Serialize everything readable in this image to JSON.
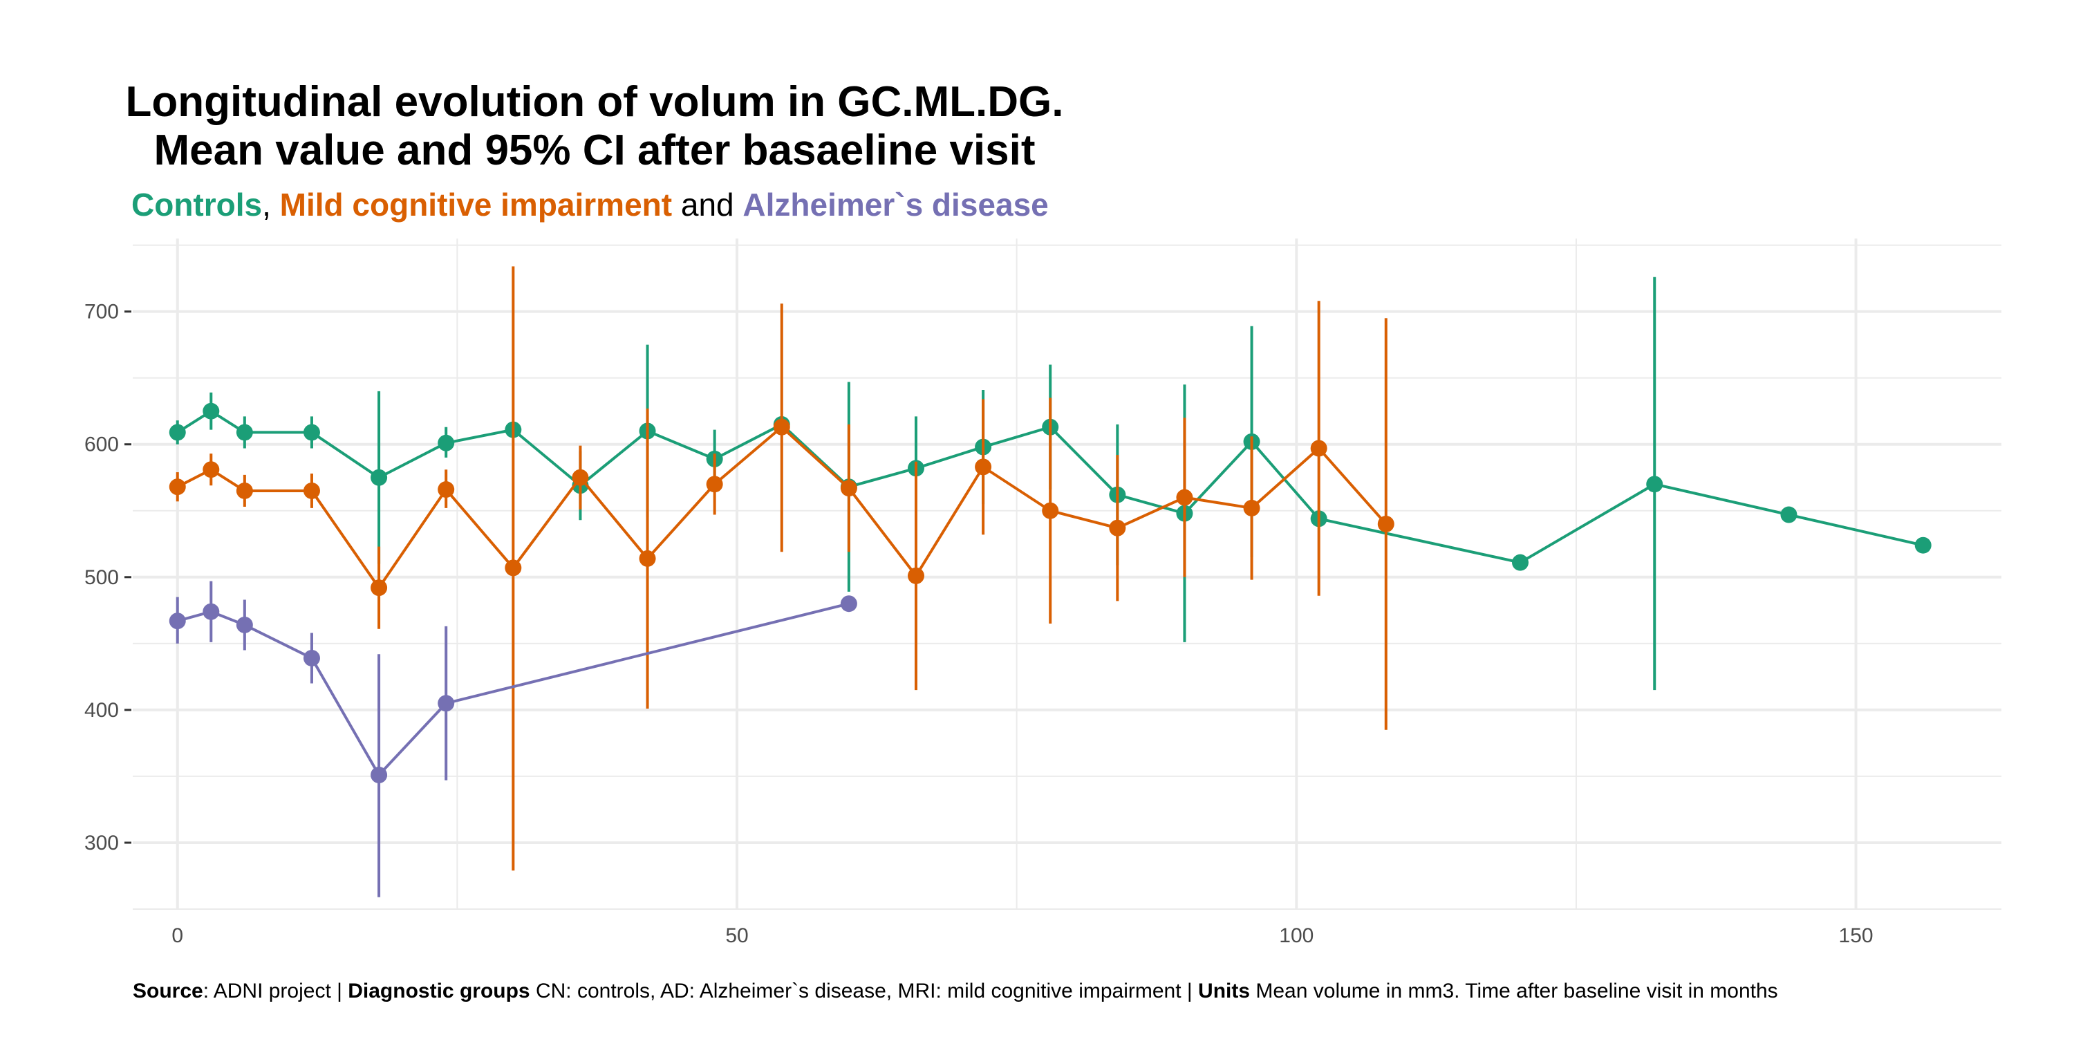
{
  "chart_data": {
    "type": "line",
    "title_lines": [
      "Longitudinal evolution of volum in GC.ML.DG.",
      "Mean value and 95% CI after basaeline visit"
    ],
    "subtitle": {
      "controls": "Controls",
      "sep1": ", ",
      "mci": "Mild cognitive impairment",
      "and": " and ",
      "ad": "Alzheimer`s disease"
    },
    "xlim": [
      -4,
      163
    ],
    "ylim": [
      250,
      755
    ],
    "x_ticks": [
      0,
      50,
      100,
      150
    ],
    "x_tick_labels": [
      "0",
      "50",
      "100",
      "150"
    ],
    "y_ticks": [
      300,
      400,
      500,
      600,
      700
    ],
    "y_tick_labels": [
      "300",
      "400",
      "500",
      "600",
      "700"
    ],
    "grid": true,
    "legend": "none",
    "colors": {
      "controls": "#1b9e77",
      "mci": "#d95f02",
      "ad": "#7570b3",
      "grid": "#ebebeb"
    },
    "series": [
      {
        "key": "controls",
        "points": [
          {
            "x": 0,
            "y": 609,
            "lo": 600,
            "hi": 618
          },
          {
            "x": 3,
            "y": 625,
            "lo": 611,
            "hi": 639
          },
          {
            "x": 6,
            "y": 609,
            "lo": 597,
            "hi": 621
          },
          {
            "x": 12,
            "y": 609,
            "lo": 597,
            "hi": 621
          },
          {
            "x": 18,
            "y": 575,
            "lo": 510,
            "hi": 640
          },
          {
            "x": 24,
            "y": 601,
            "lo": 590,
            "hi": 613
          },
          {
            "x": 30,
            "y": 611,
            "lo": null,
            "hi": null
          },
          {
            "x": 36,
            "y": 569,
            "lo": 543,
            "hi": 595
          },
          {
            "x": 42,
            "y": 610,
            "lo": 545,
            "hi": 675
          },
          {
            "x": 48,
            "y": 589,
            "lo": 567,
            "hi": 611
          },
          {
            "x": 54,
            "y": 615,
            "lo": null,
            "hi": null
          },
          {
            "x": 60,
            "y": 568,
            "lo": 489,
            "hi": 647
          },
          {
            "x": 66,
            "y": 582,
            "lo": 543,
            "hi": 621
          },
          {
            "x": 72,
            "y": 598,
            "lo": 555,
            "hi": 641
          },
          {
            "x": 78,
            "y": 613,
            "lo": 566,
            "hi": 660
          },
          {
            "x": 84,
            "y": 562,
            "lo": 509,
            "hi": 615
          },
          {
            "x": 90,
            "y": 548,
            "lo": 451,
            "hi": 645
          },
          {
            "x": 96,
            "y": 602,
            "lo": 515,
            "hi": 689
          },
          {
            "x": 102,
            "y": 544,
            "lo": null,
            "hi": null
          },
          {
            "x": 120,
            "y": 511,
            "lo": null,
            "hi": null
          },
          {
            "x": 132,
            "y": 570,
            "lo": 415,
            "hi": 726
          },
          {
            "x": 144,
            "y": 547,
            "lo": null,
            "hi": null
          },
          {
            "x": 156,
            "y": 524,
            "lo": null,
            "hi": null
          }
        ]
      },
      {
        "key": "mci",
        "points": [
          {
            "x": 0,
            "y": 568,
            "lo": 557,
            "hi": 579
          },
          {
            "x": 3,
            "y": 581,
            "lo": 569,
            "hi": 593
          },
          {
            "x": 6,
            "y": 565,
            "lo": 553,
            "hi": 577
          },
          {
            "x": 12,
            "y": 565,
            "lo": 552,
            "hi": 578
          },
          {
            "x": 18,
            "y": 492,
            "lo": 461,
            "hi": 523
          },
          {
            "x": 24,
            "y": 566,
            "lo": 552,
            "hi": 581
          },
          {
            "x": 30,
            "y": 507,
            "lo": 279,
            "hi": 734
          },
          {
            "x": 36,
            "y": 575,
            "lo": 551,
            "hi": 599
          },
          {
            "x": 42,
            "y": 514,
            "lo": 401,
            "hi": 627
          },
          {
            "x": 48,
            "y": 570,
            "lo": 547,
            "hi": 593
          },
          {
            "x": 54,
            "y": 613,
            "lo": 519,
            "hi": 706
          },
          {
            "x": 60,
            "y": 567,
            "lo": 519,
            "hi": 615
          },
          {
            "x": 66,
            "y": 501,
            "lo": 415,
            "hi": 587
          },
          {
            "x": 72,
            "y": 583,
            "lo": 532,
            "hi": 634
          },
          {
            "x": 78,
            "y": 550,
            "lo": 465,
            "hi": 635
          },
          {
            "x": 84,
            "y": 537,
            "lo": 482,
            "hi": 592
          },
          {
            "x": 90,
            "y": 560,
            "lo": 500,
            "hi": 620
          },
          {
            "x": 96,
            "y": 552,
            "lo": 498,
            "hi": 606
          },
          {
            "x": 102,
            "y": 597,
            "lo": 486,
            "hi": 708
          },
          {
            "x": 108,
            "y": 540,
            "lo": 385,
            "hi": 695
          }
        ]
      },
      {
        "key": "ad",
        "points": [
          {
            "x": 0,
            "y": 467,
            "lo": 450,
            "hi": 485
          },
          {
            "x": 3,
            "y": 474,
            "lo": 451,
            "hi": 497
          },
          {
            "x": 6,
            "y": 464,
            "lo": 445,
            "hi": 483
          },
          {
            "x": 12,
            "y": 439,
            "lo": 420,
            "hi": 458
          },
          {
            "x": 18,
            "y": 351,
            "lo": 259,
            "hi": 442
          },
          {
            "x": 24,
            "y": 405,
            "lo": 347,
            "hi": 463
          },
          {
            "x": 60,
            "y": 480,
            "lo": null,
            "hi": null
          }
        ]
      }
    ]
  },
  "caption": [
    {
      "text": "Source",
      "bold": true
    },
    {
      "text": ": ADNI project | ",
      "bold": false
    },
    {
      "text": "Diagnostic groups",
      "bold": true
    },
    {
      "text": " CN: controls, AD: Alzheimer`s disease, MRI: mild cognitive impairment | ",
      "bold": false
    },
    {
      "text": "Units",
      "bold": true
    },
    {
      "text": " Mean volume in mm3. Time after baseline visit in months",
      "bold": false
    }
  ]
}
